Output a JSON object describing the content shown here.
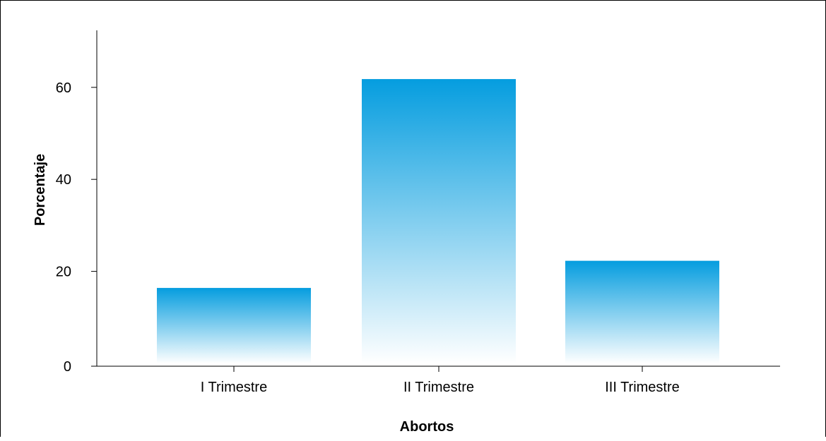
{
  "chart_data": {
    "type": "bar",
    "title": "",
    "xlabel": "Abortos",
    "ylabel": "Porcentaje",
    "categories": [
      "I Trimestre",
      "II Trimestre",
      "III Trimestre"
    ],
    "values": [
      16.4,
      61.8,
      22.3
    ],
    "ylim": [
      0,
      72
    ],
    "yticks": [
      0,
      20,
      40,
      60
    ],
    "ytick_labels": [
      "0",
      "20",
      "40",
      "60"
    ],
    "grid": false,
    "legend": "none",
    "bar_color_top": "#059ddf",
    "bar_color_bottom": "#ffffff"
  }
}
